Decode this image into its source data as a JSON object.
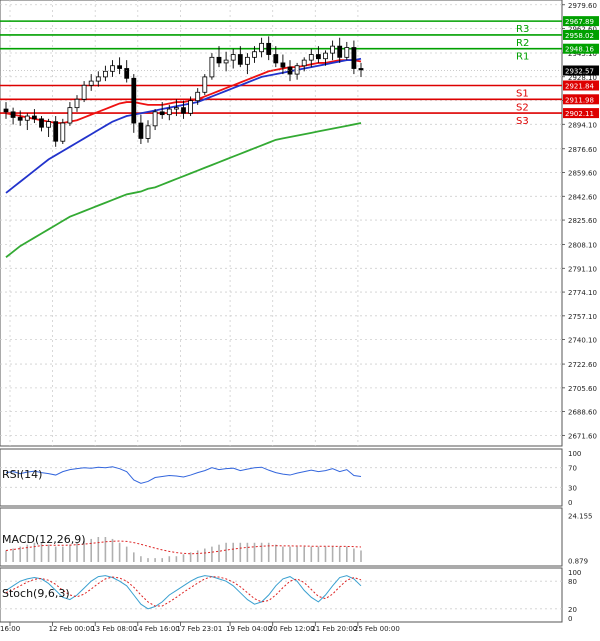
{
  "chart_data": [
    {
      "type": "candlestick",
      "panel": "price",
      "title": "",
      "ylim": [
        2664,
        2983
      ],
      "y_ticks": [
        "2979.60",
        "2962.60",
        "2945.10",
        "2928.10",
        "2911.10",
        "2894.10",
        "2876.60",
        "2859.60",
        "2842.60",
        "2825.60",
        "2808.10",
        "2791.10",
        "2774.10",
        "2757.10",
        "2740.10",
        "2722.60",
        "2705.60",
        "2688.60",
        "2671.60"
      ],
      "ohlc": [
        [
          2905,
          2910,
          2898,
          2903
        ],
        [
          2903,
          2906,
          2894,
          2899
        ],
        [
          2899,
          2904,
          2893,
          2897
        ],
        [
          2897,
          2902,
          2890,
          2900
        ],
        [
          2900,
          2905,
          2895,
          2898
        ],
        [
          2898,
          2900,
          2889,
          2892
        ],
        [
          2892,
          2898,
          2885,
          2896
        ],
        [
          2896,
          2900,
          2878,
          2882
        ],
        [
          2882,
          2898,
          2880,
          2895
        ],
        [
          2895,
          2910,
          2893,
          2906
        ],
        [
          2906,
          2915,
          2903,
          2912
        ],
        [
          2912,
          2925,
          2910,
          2922
        ],
        [
          2922,
          2930,
          2918,
          2925
        ],
        [
          2925,
          2932,
          2921,
          2928
        ],
        [
          2928,
          2936,
          2925,
          2932
        ],
        [
          2932,
          2940,
          2928,
          2936
        ],
        [
          2936,
          2942,
          2930,
          2934
        ],
        [
          2934,
          2940,
          2924,
          2927
        ],
        [
          2927,
          2930,
          2888,
          2895
        ],
        [
          2895,
          2901,
          2880,
          2884
        ],
        [
          2884,
          2897,
          2881,
          2893
        ],
        [
          2893,
          2905,
          2890,
          2903
        ],
        [
          2903,
          2910,
          2898,
          2901
        ],
        [
          2901,
          2908,
          2897,
          2905
        ],
        [
          2905,
          2912,
          2900,
          2906
        ],
        [
          2906,
          2911,
          2898,
          2902
        ],
        [
          2902,
          2914,
          2900,
          2911
        ],
        [
          2911,
          2920,
          2908,
          2917
        ],
        [
          2917,
          2930,
          2915,
          2928
        ],
        [
          2928,
          2945,
          2926,
          2942
        ],
        [
          2942,
          2950,
          2935,
          2938
        ],
        [
          2938,
          2946,
          2932,
          2940
        ],
        [
          2940,
          2948,
          2934,
          2944
        ],
        [
          2944,
          2950,
          2935,
          2937
        ],
        [
          2937,
          2945,
          2930,
          2942
        ],
        [
          2942,
          2950,
          2938,
          2946
        ],
        [
          2946,
          2956,
          2942,
          2952
        ],
        [
          2952,
          2957,
          2940,
          2944
        ],
        [
          2944,
          2950,
          2935,
          2938
        ],
        [
          2938,
          2944,
          2930,
          2935
        ],
        [
          2935,
          2940,
          2925,
          2930
        ],
        [
          2930,
          2938,
          2926,
          2936
        ],
        [
          2936,
          2942,
          2932,
          2940
        ],
        [
          2940,
          2948,
          2935,
          2944
        ],
        [
          2944,
          2950,
          2938,
          2941
        ],
        [
          2941,
          2947,
          2936,
          2945
        ],
        [
          2945,
          2954,
          2940,
          2950
        ],
        [
          2950,
          2956,
          2938,
          2942
        ],
        [
          2942,
          2953,
          2940,
          2949
        ],
        [
          2949,
          2954,
          2930,
          2934
        ],
        [
          2934,
          2938,
          2928,
          2933
        ]
      ],
      "moving_averages": [
        {
          "color": "#ee1111",
          "values": [
            2902,
            2901,
            2900,
            2899,
            2898,
            2897,
            2896,
            2895,
            2895,
            2896,
            2897,
            2899,
            2901,
            2903,
            2905,
            2907,
            2909,
            2910,
            2910,
            2909,
            2908,
            2908,
            2908,
            2909,
            2910,
            2910,
            2911,
            2912,
            2914,
            2916,
            2918,
            2920,
            2922,
            2924,
            2926,
            2928,
            2930,
            2932,
            2933,
            2934,
            2935,
            2935,
            2936,
            2937,
            2938,
            2938,
            2939,
            2940,
            2940,
            2940,
            2939
          ]
        },
        {
          "color": "#2233cc",
          "values": [
            2845,
            2849,
            2853,
            2857,
            2861,
            2865,
            2869,
            2872,
            2875,
            2878,
            2881,
            2884,
            2887,
            2890,
            2893,
            2896,
            2898,
            2900,
            2901,
            2902,
            2903,
            2904,
            2905,
            2906,
            2907,
            2908,
            2909,
            2910,
            2912,
            2914,
            2916,
            2918,
            2920,
            2922,
            2924,
            2926,
            2928,
            2929,
            2930,
            2931,
            2932,
            2933,
            2934,
            2935,
            2936,
            2937,
            2938,
            2939,
            2940,
            2940,
            2941
          ]
        },
        {
          "color": "#33aa33",
          "values": [
            2799,
            2803,
            2807,
            2810,
            2813,
            2816,
            2819,
            2822,
            2825,
            2828,
            2830,
            2832,
            2834,
            2836,
            2838,
            2840,
            2842,
            2844,
            2845,
            2846,
            2848,
            2849,
            2851,
            2853,
            2855,
            2857,
            2859,
            2861,
            2863,
            2865,
            2867,
            2869,
            2871,
            2873,
            2875,
            2877,
            2879,
            2881,
            2883,
            2884,
            2885,
            2886,
            2887,
            2888,
            2889,
            2890,
            2891,
            2892,
            2893,
            2894,
            2895
          ]
        }
      ],
      "levels": [
        {
          "name": "R3",
          "value": 2967.89,
          "label": "2967.89",
          "color": "#00a000"
        },
        {
          "name": "R2",
          "value": 2958.02,
          "label": "2958.02",
          "color": "#00a000"
        },
        {
          "name": "R1",
          "value": 2948.16,
          "label": "2948.16",
          "color": "#00a000"
        },
        {
          "name": "S1",
          "value": 2921.84,
          "label": "2921.84",
          "color": "#dd0000"
        },
        {
          "name": "S2",
          "value": 2911.98,
          "label": "2911.98",
          "color": "#dd0000"
        },
        {
          "name": "S3",
          "value": 2902.11,
          "label": "2902.11",
          "color": "#dd0000"
        }
      ],
      "current_price": {
        "value": 2932.57,
        "label": "2932.57"
      },
      "x_ticks": [
        "16:00",
        "12 Feb 00:00",
        "13 Feb 08:00",
        "14 Feb 16:00",
        "17 Feb 23:01",
        "19 Feb 04:00",
        "20 Feb 12:00",
        "21 Feb 20:00",
        "25 Feb 00:00"
      ],
      "grid": true
    },
    {
      "type": "line",
      "panel": "rsi",
      "title": "RSI(14)",
      "ylim": [
        0,
        100
      ],
      "y_ticks": [
        "100",
        "70",
        "30",
        "0"
      ],
      "series": [
        {
          "color": "#3366dd",
          "values": [
            60,
            62,
            58,
            61,
            63,
            60,
            58,
            55,
            62,
            66,
            68,
            70,
            69,
            71,
            70,
            72,
            68,
            62,
            45,
            38,
            42,
            50,
            52,
            54,
            53,
            51,
            55,
            60,
            64,
            70,
            66,
            68,
            69,
            64,
            67,
            70,
            71,
            65,
            60,
            57,
            55,
            59,
            62,
            65,
            62,
            64,
            68,
            62,
            66,
            54,
            52
          ]
        }
      ],
      "grid": true
    },
    {
      "type": "bar",
      "panel": "macd",
      "title": "MACD(12,26,9)",
      "ylim": [
        0,
        26
      ],
      "y_ticks": [
        "24.155",
        "0.879"
      ],
      "series": [
        {
          "type": "histogram",
          "color": "#b0b0b0",
          "values": [
            6,
            7,
            8,
            9,
            10,
            10,
            9,
            8,
            8,
            9,
            10,
            11,
            12,
            13,
            13,
            12,
            10,
            8,
            5,
            3,
            2,
            2,
            2,
            3,
            3,
            4,
            5,
            6,
            7,
            8,
            9,
            10,
            10,
            10,
            10,
            10,
            10,
            10,
            9,
            8,
            8,
            8,
            8,
            8,
            8,
            8,
            8,
            8,
            8,
            7,
            6
          ]
        },
        {
          "type": "signal",
          "color": "#dd2222",
          "values": [
            6,
            6.5,
            7,
            7.5,
            8,
            8.5,
            8.7,
            8.7,
            8.7,
            8.8,
            9,
            9.3,
            9.7,
            10.1,
            10.5,
            10.8,
            10.9,
            10.7,
            10.1,
            9.2,
            8.2,
            7.2,
            6.3,
            5.5,
            4.9,
            4.5,
            4.3,
            4.4,
            4.7,
            5.1,
            5.6,
            6.2,
            6.7,
            7.2,
            7.6,
            7.9,
            8.2,
            8.4,
            8.5,
            8.4,
            8.4,
            8.3,
            8.3,
            8.2,
            8.2,
            8.2,
            8.2,
            8.1,
            8.1,
            8,
            7.8
          ]
        }
      ],
      "grid": true
    },
    {
      "type": "line",
      "panel": "stoch",
      "title": "Stoch(9,6,3)",
      "ylim": [
        0,
        100
      ],
      "y_ticks": [
        "100",
        "80",
        "20",
        "0"
      ],
      "series": [
        {
          "color": "#3aa0d0",
          "values": [
            60,
            70,
            80,
            85,
            88,
            85,
            75,
            60,
            45,
            40,
            50,
            65,
            80,
            90,
            92,
            88,
            80,
            70,
            50,
            30,
            20,
            25,
            35,
            50,
            60,
            70,
            80,
            88,
            92,
            90,
            85,
            80,
            70,
            55,
            40,
            30,
            35,
            50,
            70,
            85,
            90,
            80,
            60,
            45,
            35,
            50,
            70,
            88,
            92,
            85,
            70
          ]
        },
        {
          "color": "#dd2222",
          "values": [
            55,
            62,
            70,
            78,
            84,
            86,
            82,
            73,
            60,
            50,
            46,
            52,
            63,
            75,
            85,
            89,
            87,
            80,
            67,
            50,
            35,
            26,
            26,
            35,
            45,
            56,
            66,
            76,
            85,
            90,
            89,
            85,
            78,
            68,
            55,
            42,
            35,
            38,
            50,
            66,
            80,
            85,
            77,
            62,
            47,
            42,
            52,
            68,
            82,
            88,
            83
          ]
        }
      ],
      "grid": true
    }
  ]
}
